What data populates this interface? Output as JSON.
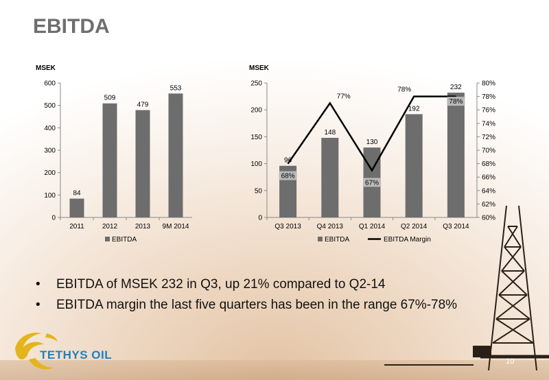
{
  "page": {
    "title": "EBITDA",
    "page_number": "10"
  },
  "bullets": [
    "EBITDA  of  MSEK 232 in Q3, up 21% compared to Q2-14",
    "EBITDA  margin the last five quarters has been in the range 67%-78%"
  ],
  "logo": {
    "text": "TETHYS OIL"
  },
  "colors": {
    "bar": "#6d6d6d",
    "bar_light": "#b9b9b9",
    "line": "#000000",
    "title": "#6e6e6e"
  },
  "chart_data": [
    {
      "type": "bar",
      "unit_label": "MSEK",
      "categories": [
        "2011",
        "2012",
        "2013",
        "9M 2014"
      ],
      "series": [
        {
          "name": "EBITDA",
          "values": [
            84,
            509,
            479,
            553
          ]
        }
      ],
      "data_labels": [
        "84",
        "509",
        "479",
        "553"
      ],
      "ylim": [
        0,
        600
      ],
      "yticks": [
        "0",
        "100",
        "200",
        "300",
        "400",
        "500",
        "600"
      ],
      "grid": false,
      "legend": "bottom"
    },
    {
      "type": "bar",
      "unit_label": "MSEK",
      "categories": [
        "Q3 2013",
        "Q4 2013",
        "Q1 2014",
        "Q2 2014",
        "Q3 2014"
      ],
      "series": [
        {
          "name": "EBITDA",
          "type": "bar",
          "values": [
            96,
            148,
            130,
            192,
            232
          ]
        },
        {
          "name": "EBITDA Margin",
          "type": "line",
          "axis": "secondary",
          "values": [
            68,
            77,
            67,
            78,
            78
          ]
        }
      ],
      "bar_labels": [
        "96",
        "148",
        "130",
        "192",
        "232"
      ],
      "margin_labels": [
        "68%",
        "77%",
        "67%",
        "78%",
        "78%"
      ],
      "ylim": [
        0,
        250
      ],
      "yticks": [
        "0",
        "50",
        "100",
        "150",
        "200",
        "250"
      ],
      "y2lim": [
        60,
        80
      ],
      "y2ticks": [
        "60%",
        "62%",
        "64%",
        "66%",
        "68%",
        "70%",
        "72%",
        "74%",
        "76%",
        "78%",
        "80%"
      ],
      "grid": false,
      "legend": "bottom"
    }
  ]
}
